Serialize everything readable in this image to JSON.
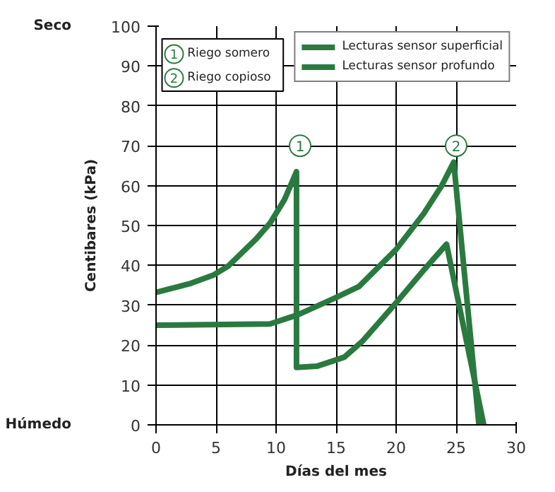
{
  "chart_data": {
    "type": "line",
    "xlabel": "Días del mes",
    "ylabel": "Centibares (kPa)",
    "xlim": [
      0,
      30
    ],
    "ylim": [
      0,
      100
    ],
    "xticks": [
      0,
      5,
      10,
      15,
      20,
      25,
      30
    ],
    "yticks": [
      0,
      10,
      20,
      30,
      40,
      50,
      60,
      70,
      80,
      90,
      100
    ],
    "grid": true,
    "legend": "top right",
    "line_style": "solid",
    "marker": "none",
    "series": [
      {
        "name": "Lecturas sensor superficial",
        "color": "#2a7a40",
        "x": [
          0,
          2.9,
          4.8,
          6,
          8.3,
          9.5,
          10.7,
          11.7,
          11.7,
          13.4,
          15.7,
          17.2,
          20,
          22.3,
          24.2,
          27.3
        ],
        "values": [
          33.2,
          35.5,
          37.6,
          39.8,
          46.5,
          50.6,
          56.5,
          63.5,
          14.4,
          14.7,
          17,
          21,
          30.6,
          38.8,
          45.3,
          0
        ]
      },
      {
        "name": "Lecturas sensor profundo",
        "color": "#2a7a40",
        "x": [
          0,
          9.5,
          11.8,
          14.9,
          16.9,
          20,
          22.3,
          23.8,
          24.8,
          26.9
        ],
        "values": [
          25,
          25.3,
          27.6,
          31.8,
          34.7,
          44,
          53,
          60,
          65.9,
          0
        ]
      }
    ],
    "annotations": [
      {
        "text": "1",
        "x": 12,
        "y": 70
      },
      {
        "text": "2",
        "x": 25,
        "y": 70
      },
      "Riego somero",
      "Riego copioso",
      "Seco",
      "Húmedo"
    ]
  }
}
